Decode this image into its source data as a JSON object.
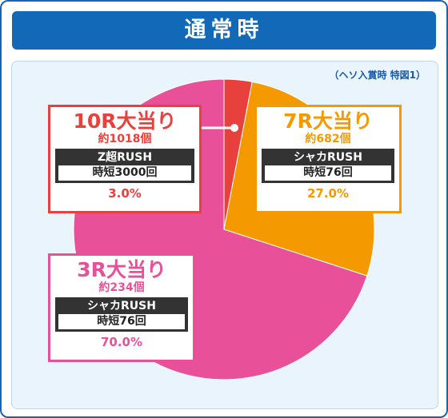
{
  "title": "通常時",
  "note": "（ヘソ入賞時 特図1）",
  "colors": {
    "blue": "#1169b8",
    "red": "#e8413d",
    "orange": "#f49a00",
    "pink": "#e8509a"
  },
  "chart_data": {
    "type": "pie",
    "slices": [
      {
        "label": "10R大当り",
        "value": 3.0,
        "color": "#e8413d",
        "sub": "約1018個",
        "rush": "Z超RUSH",
        "rush_detail": "時短3000回",
        "percent": "3.0%"
      },
      {
        "label": "7R大当り",
        "value": 27.0,
        "color": "#f49a00",
        "sub": "約682個",
        "rush": "シャカRUSH",
        "rush_detail": "時短76回",
        "percent": "27.0%"
      },
      {
        "label": "3R大当り",
        "value": 70.0,
        "color": "#e8509a",
        "sub": "約234個",
        "rush": "シャカRUSH",
        "rush_detail": "時短76回",
        "percent": "70.0%"
      }
    ]
  }
}
